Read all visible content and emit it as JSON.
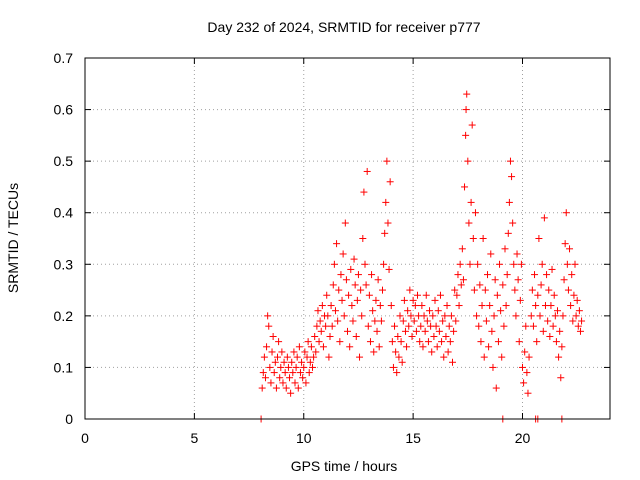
{
  "chart_data": {
    "type": "scatter",
    "title": "Day 232 of 2024, SRMTID for receiver p777",
    "xlabel": "GPS time / hours",
    "ylabel": "SRMTID / TECUs",
    "xlim": [
      0,
      24
    ],
    "ylim": [
      0,
      0.7
    ],
    "xticks": [
      "0",
      "5",
      "10",
      "15",
      "20"
    ],
    "xtick_values": [
      0,
      5,
      10,
      15,
      20
    ],
    "yticks": [
      "0",
      "0.1",
      "0.2",
      "0.3",
      "0.4",
      "0.5",
      "0.6",
      "0.7"
    ],
    "ytick_values": [
      0,
      0.1,
      0.2,
      0.3,
      0.4,
      0.5,
      0.6,
      0.7
    ],
    "grid": true,
    "marker": "+",
    "series_color": "#ff0000",
    "series": [
      {
        "name": "p777",
        "points": [
          [
            8.1,
            0.06
          ],
          [
            8.15,
            0.09
          ],
          [
            8.2,
            0.12
          ],
          [
            8.25,
            0.08
          ],
          [
            8.3,
            0.14
          ],
          [
            8.35,
            0.2
          ],
          [
            8.4,
            0.18
          ],
          [
            8.45,
            0.1
          ],
          [
            8.5,
            0.07
          ],
          [
            8.55,
            0.13
          ],
          [
            8.6,
            0.16
          ],
          [
            8.65,
            0.09
          ],
          [
            8.7,
            0.11
          ],
          [
            8.75,
            0.06
          ],
          [
            8.8,
            0.12
          ],
          [
            8.85,
            0.15
          ],
          [
            8.9,
            0.08
          ],
          [
            8.95,
            0.1
          ],
          [
            9.0,
            0.13
          ],
          [
            9.05,
            0.07
          ],
          [
            9.1,
            0.11
          ],
          [
            9.15,
            0.09
          ],
          [
            9.2,
            0.06
          ],
          [
            9.25,
            0.12
          ],
          [
            9.3,
            0.1
          ],
          [
            9.35,
            0.08
          ],
          [
            9.4,
            0.05
          ],
          [
            9.45,
            0.11
          ],
          [
            9.5,
            0.09
          ],
          [
            9.55,
            0.13
          ],
          [
            9.6,
            0.07
          ],
          [
            9.65,
            0.1
          ],
          [
            9.7,
            0.12
          ],
          [
            9.75,
            0.06
          ],
          [
            9.8,
            0.14
          ],
          [
            9.85,
            0.09
          ],
          [
            9.9,
            0.11
          ],
          [
            9.95,
            0.08
          ],
          [
            10.0,
            0.1
          ],
          [
            10.05,
            0.13
          ],
          [
            10.1,
            0.07
          ],
          [
            10.15,
            0.12
          ],
          [
            10.2,
            0.15
          ],
          [
            10.25,
            0.09
          ],
          [
            10.3,
            0.11
          ],
          [
            10.35,
            0.14
          ],
          [
            10.4,
            0.1
          ],
          [
            10.45,
            0.12
          ],
          [
            10.5,
            0.16
          ],
          [
            10.55,
            0.13
          ],
          [
            10.6,
            0.18
          ],
          [
            10.65,
            0.21
          ],
          [
            10.7,
            0.15
          ],
          [
            10.75,
            0.19
          ],
          [
            10.8,
            0.17
          ],
          [
            10.85,
            0.22
          ],
          [
            10.9,
            0.14
          ],
          [
            10.95,
            0.2
          ],
          [
            11.0,
            0.18
          ],
          [
            11.05,
            0.24
          ],
          [
            11.1,
            0.2
          ],
          [
            11.15,
            0.12
          ],
          [
            11.2,
            0.16
          ],
          [
            11.25,
            0.22
          ],
          [
            11.3,
            0.18
          ],
          [
            11.35,
            0.26
          ],
          [
            11.4,
            0.3
          ],
          [
            11.45,
            0.21
          ],
          [
            11.5,
            0.34
          ],
          [
            11.55,
            0.19
          ],
          [
            11.6,
            0.25
          ],
          [
            11.65,
            0.15
          ],
          [
            11.7,
            0.28
          ],
          [
            11.75,
            0.23
          ],
          [
            11.8,
            0.32
          ],
          [
            11.85,
            0.2
          ],
          [
            11.9,
            0.38
          ],
          [
            11.95,
            0.27
          ],
          [
            12.0,
            0.17
          ],
          [
            12.05,
            0.24
          ],
          [
            12.1,
            0.14
          ],
          [
            12.15,
            0.29
          ],
          [
            12.2,
            0.22
          ],
          [
            12.25,
            0.19
          ],
          [
            12.3,
            0.31
          ],
          [
            12.35,
            0.26
          ],
          [
            12.4,
            0.16
          ],
          [
            12.45,
            0.23
          ],
          [
            12.5,
            0.28
          ],
          [
            12.55,
            0.12
          ],
          [
            12.6,
            0.25
          ],
          [
            12.65,
            0.2
          ],
          [
            12.7,
            0.35
          ],
          [
            12.75,
            0.44
          ],
          [
            12.8,
            0.3
          ],
          [
            12.85,
            0.26
          ],
          [
            12.9,
            0.48
          ],
          [
            12.95,
            0.18
          ],
          [
            13.0,
            0.24
          ],
          [
            13.05,
            0.15
          ],
          [
            13.1,
            0.28
          ],
          [
            13.15,
            0.21
          ],
          [
            13.2,
            0.13
          ],
          [
            13.25,
            0.19
          ],
          [
            13.3,
            0.23
          ],
          [
            13.35,
            0.17
          ],
          [
            13.4,
            0.27
          ],
          [
            13.45,
            0.14
          ],
          [
            13.5,
            0.22
          ],
          [
            13.55,
            0.19
          ],
          [
            13.6,
            0.25
          ],
          [
            13.65,
            0.3
          ],
          [
            13.7,
            0.36
          ],
          [
            13.75,
            0.42
          ],
          [
            13.8,
            0.5
          ],
          [
            13.85,
            0.38
          ],
          [
            13.9,
            0.29
          ],
          [
            13.95,
            0.46
          ],
          [
            14.0,
            0.22
          ],
          [
            14.05,
            0.15
          ],
          [
            14.1,
            0.1
          ],
          [
            14.15,
            0.18
          ],
          [
            14.2,
            0.13
          ],
          [
            14.25,
            0.09
          ],
          [
            14.3,
            0.16
          ],
          [
            14.35,
            0.12
          ],
          [
            14.4,
            0.2
          ],
          [
            14.45,
            0.15
          ],
          [
            14.5,
            0.11
          ],
          [
            14.55,
            0.19
          ],
          [
            14.6,
            0.23
          ],
          [
            14.65,
            0.17
          ],
          [
            14.7,
            0.14
          ],
          [
            14.75,
            0.21
          ],
          [
            14.8,
            0.18
          ],
          [
            14.85,
            0.25
          ],
          [
            14.9,
            0.2
          ],
          [
            14.95,
            0.16
          ],
          [
            15.0,
            0.23
          ],
          [
            15.05,
            0.19
          ],
          [
            15.1,
            0.22
          ],
          [
            15.15,
            0.17
          ],
          [
            15.2,
            0.24
          ],
          [
            15.25,
            0.2
          ],
          [
            15.3,
            0.15
          ],
          [
            15.35,
            0.18
          ],
          [
            15.4,
            0.22
          ],
          [
            15.45,
            0.14
          ],
          [
            15.5,
            0.2
          ],
          [
            15.55,
            0.17
          ],
          [
            15.6,
            0.24
          ],
          [
            15.65,
            0.19
          ],
          [
            15.7,
            0.15
          ],
          [
            15.75,
            0.21
          ],
          [
            15.8,
            0.18
          ],
          [
            15.85,
            0.13
          ],
          [
            15.9,
            0.2
          ],
          [
            15.95,
            0.16
          ],
          [
            16.0,
            0.23
          ],
          [
            16.05,
            0.18
          ],
          [
            16.1,
            0.14
          ],
          [
            16.15,
            0.21
          ],
          [
            16.2,
            0.17
          ],
          [
            16.25,
            0.24
          ],
          [
            16.3,
            0.15
          ],
          [
            16.35,
            0.19
          ],
          [
            16.4,
            0.12
          ],
          [
            16.45,
            0.2
          ],
          [
            16.5,
            0.16
          ],
          [
            16.55,
            0.22
          ],
          [
            16.6,
            0.13
          ],
          [
            16.65,
            0.18
          ],
          [
            16.7,
            0.15
          ],
          [
            16.75,
            0.2
          ],
          [
            16.8,
            0.11
          ],
          [
            16.85,
            0.17
          ],
          [
            16.9,
            0.25
          ],
          [
            16.95,
            0.19
          ],
          [
            17.0,
            0.24
          ],
          [
            17.05,
            0.28
          ],
          [
            17.1,
            0.22
          ],
          [
            17.15,
            0.3
          ],
          [
            17.2,
            0.26
          ],
          [
            17.25,
            0.33
          ],
          [
            17.3,
            0.27
          ],
          [
            17.35,
            0.45
          ],
          [
            17.4,
            0.55
          ],
          [
            17.42,
            0.6
          ],
          [
            17.45,
            0.63
          ],
          [
            17.5,
            0.5
          ],
          [
            17.55,
            0.38
          ],
          [
            17.6,
            0.3
          ],
          [
            17.65,
            0.42
          ],
          [
            17.7,
            0.57
          ],
          [
            17.75,
            0.35
          ],
          [
            17.8,
            0.25
          ],
          [
            17.85,
            0.4
          ],
          [
            17.9,
            0.2
          ],
          [
            17.95,
            0.3
          ],
          [
            18.0,
            0.18
          ],
          [
            18.05,
            0.26
          ],
          [
            18.1,
            0.15
          ],
          [
            18.15,
            0.22
          ],
          [
            18.2,
            0.35
          ],
          [
            18.25,
            0.12
          ],
          [
            18.3,
            0.25
          ],
          [
            18.35,
            0.19
          ],
          [
            18.4,
            0.28
          ],
          [
            18.45,
            0.14
          ],
          [
            18.5,
            0.22
          ],
          [
            18.55,
            0.32
          ],
          [
            18.6,
            0.17
          ],
          [
            18.65,
            0.1
          ],
          [
            18.7,
            0.2
          ],
          [
            18.75,
            0.27
          ],
          [
            18.8,
            0.06
          ],
          [
            18.85,
            0.24
          ],
          [
            18.9,
            0.15
          ],
          [
            18.95,
            0.3
          ],
          [
            19.0,
            0.21
          ],
          [
            19.05,
            0.12
          ],
          [
            19.1,
            0.26
          ],
          [
            19.15,
            0.18
          ],
          [
            19.2,
            0.33
          ],
          [
            19.25,
            0.22
          ],
          [
            19.3,
            0.28
          ],
          [
            19.35,
            0.36
          ],
          [
            19.4,
            0.42
          ],
          [
            19.45,
            0.5
          ],
          [
            19.5,
            0.47
          ],
          [
            19.55,
            0.38
          ],
          [
            19.6,
            0.3
          ],
          [
            19.65,
            0.25
          ],
          [
            19.7,
            0.2
          ],
          [
            19.75,
            0.32
          ],
          [
            19.8,
            0.27
          ],
          [
            19.85,
            0.15
          ],
          [
            19.9,
            0.23
          ],
          [
            19.95,
            0.3
          ],
          [
            20.0,
            0.1
          ],
          [
            20.05,
            0.07
          ],
          [
            20.1,
            0.13
          ],
          [
            20.15,
            0.18
          ],
          [
            20.2,
            0.09
          ],
          [
            20.25,
            0.05
          ],
          [
            20.3,
            0.12
          ],
          [
            20.4,
            0.2
          ],
          [
            20.45,
            0.25
          ],
          [
            20.5,
            0.18
          ],
          [
            20.55,
            0.28
          ],
          [
            20.6,
            0.22
          ],
          [
            20.65,
            0.15
          ],
          [
            20.7,
            0.24
          ],
          [
            20.75,
            0.35
          ],
          [
            20.8,
            0.2
          ],
          [
            20.85,
            0.26
          ],
          [
            20.9,
            0.3
          ],
          [
            20.95,
            0.17
          ],
          [
            21.0,
            0.39
          ],
          [
            21.05,
            0.22
          ],
          [
            21.1,
            0.28
          ],
          [
            21.15,
            0.19
          ],
          [
            21.2,
            0.25
          ],
          [
            21.25,
            0.16
          ],
          [
            21.3,
            0.22
          ],
          [
            21.35,
            0.29
          ],
          [
            21.4,
            0.18
          ],
          [
            21.45,
            0.24
          ],
          [
            21.5,
            0.2
          ],
          [
            21.55,
            0.15
          ],
          [
            21.6,
            0.21
          ],
          [
            21.65,
            0.12
          ],
          [
            21.7,
            0.17
          ],
          [
            21.75,
            0.08
          ],
          [
            21.8,
            0.14
          ],
          [
            21.85,
            0.2
          ],
          [
            21.9,
            0.27
          ],
          [
            21.95,
            0.34
          ],
          [
            22.0,
            0.4
          ],
          [
            22.05,
            0.3
          ],
          [
            22.1,
            0.25
          ],
          [
            22.15,
            0.33
          ],
          [
            22.2,
            0.22
          ],
          [
            22.25,
            0.28
          ],
          [
            22.3,
            0.19
          ],
          [
            22.35,
            0.24
          ],
          [
            22.4,
            0.3
          ],
          [
            22.45,
            0.2
          ],
          [
            22.5,
            0.23
          ],
          [
            22.55,
            0.18
          ],
          [
            22.6,
            0.21
          ],
          [
            22.65,
            0.17
          ],
          [
            22.7,
            0.19
          ],
          [
            8.05,
            0.0
          ],
          [
            19.1,
            0.0
          ],
          [
            20.6,
            0.0
          ],
          [
            20.7,
            0.0
          ],
          [
            21.8,
            0.0
          ]
        ]
      }
    ]
  }
}
